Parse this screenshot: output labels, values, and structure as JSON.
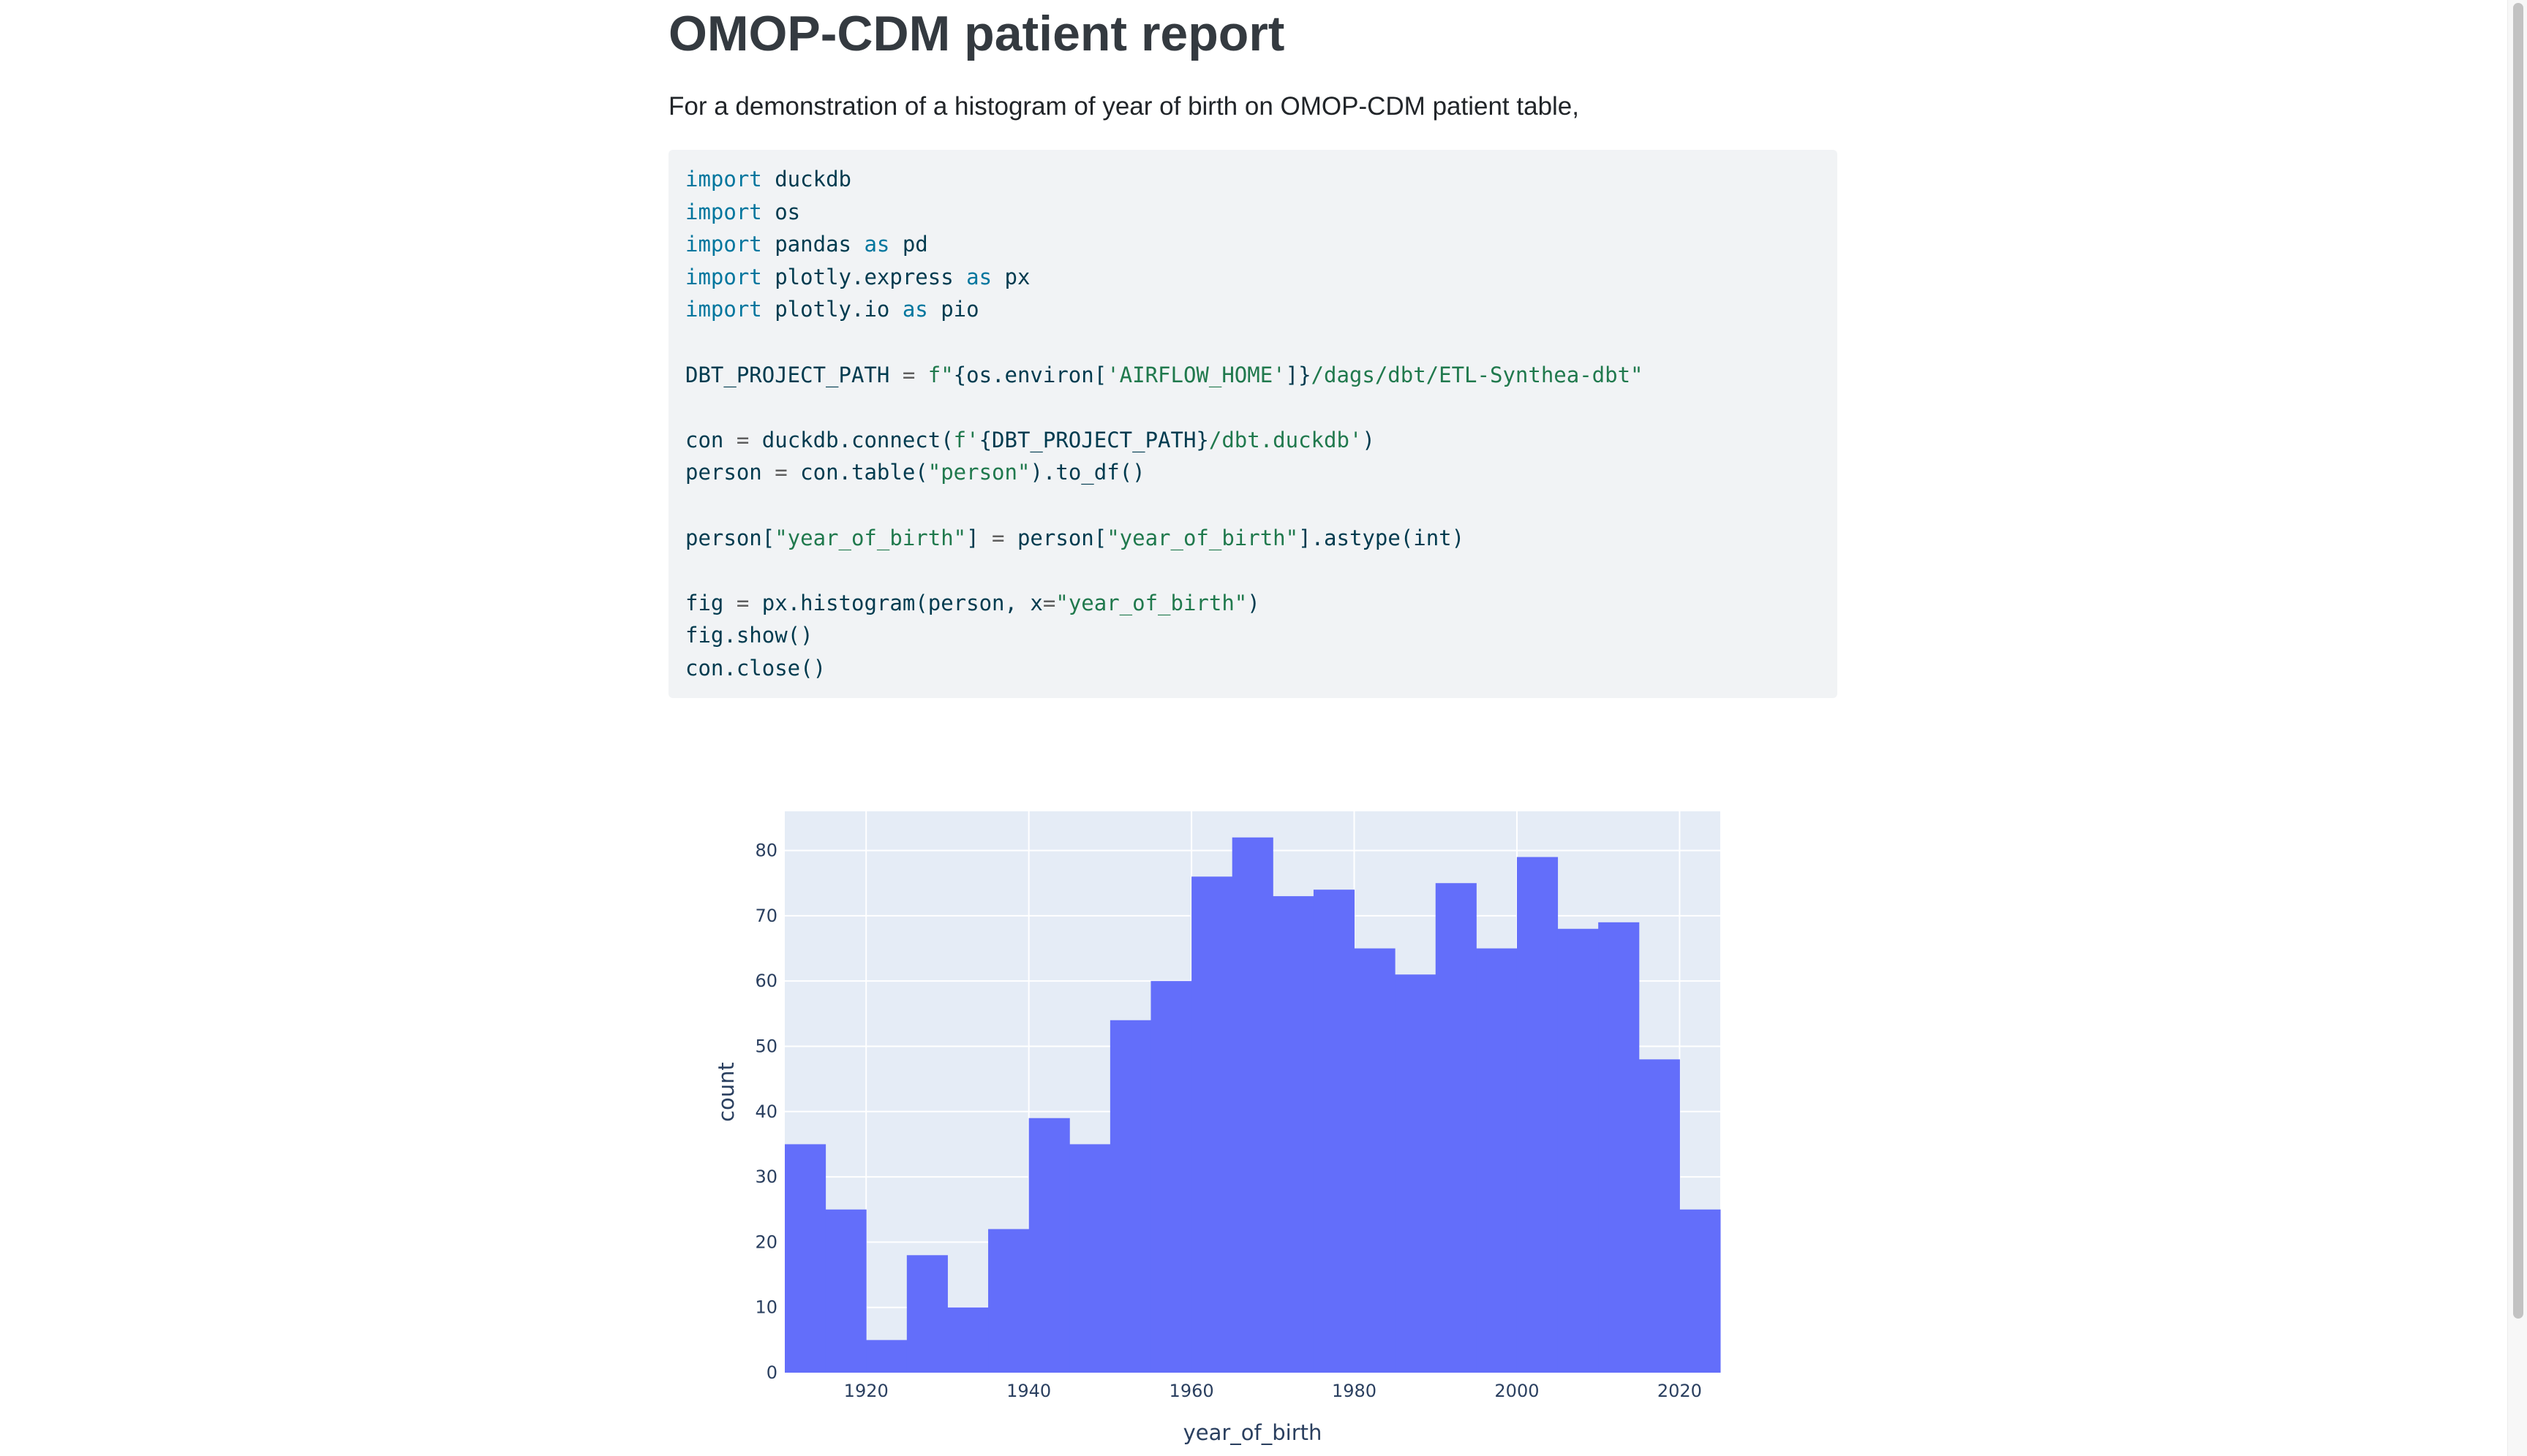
{
  "page": {
    "title": "OMOP-CDM patient report",
    "intro": "For a demonstration of a histogram of year of birth on OMOP-CDM patient table,"
  },
  "code": {
    "lines": [
      [
        {
          "t": "import",
          "c": "kw"
        },
        {
          "t": " duckdb"
        }
      ],
      [
        {
          "t": "import",
          "c": "kw"
        },
        {
          "t": " os"
        }
      ],
      [
        {
          "t": "import",
          "c": "kw"
        },
        {
          "t": " pandas "
        },
        {
          "t": "as",
          "c": "kw"
        },
        {
          "t": " pd"
        }
      ],
      [
        {
          "t": "import",
          "c": "kw"
        },
        {
          "t": " plotly.express "
        },
        {
          "t": "as",
          "c": "kw"
        },
        {
          "t": " px"
        }
      ],
      [
        {
          "t": "import",
          "c": "kw"
        },
        {
          "t": " plotly.io "
        },
        {
          "t": "as",
          "c": "kw"
        },
        {
          "t": " pio"
        }
      ],
      [],
      [
        {
          "t": "DBT_PROJECT_PATH "
        },
        {
          "t": "=",
          "c": "op"
        },
        {
          "t": " "
        },
        {
          "t": "f\"",
          "c": "str"
        },
        {
          "t": "{os.environ["
        },
        {
          "t": "'AIRFLOW_HOME'",
          "c": "str"
        },
        {
          "t": "]}"
        },
        {
          "t": "/dags/dbt/ETL-Synthea-dbt\"",
          "c": "str"
        }
      ],
      [],
      [
        {
          "t": "con "
        },
        {
          "t": "=",
          "c": "op"
        },
        {
          "t": " duckdb.connect("
        },
        {
          "t": "f'",
          "c": "str"
        },
        {
          "t": "{DBT_PROJECT_PATH}"
        },
        {
          "t": "/dbt.duckdb'",
          "c": "str"
        },
        {
          "t": ")"
        }
      ],
      [
        {
          "t": "person "
        },
        {
          "t": "=",
          "c": "op"
        },
        {
          "t": " con.table("
        },
        {
          "t": "\"person\"",
          "c": "str"
        },
        {
          "t": ").to_df()"
        }
      ],
      [],
      [
        {
          "t": "person["
        },
        {
          "t": "\"year_of_birth\"",
          "c": "str"
        },
        {
          "t": "] "
        },
        {
          "t": "=",
          "c": "op"
        },
        {
          "t": " person["
        },
        {
          "t": "\"year_of_birth\"",
          "c": "str"
        },
        {
          "t": "].astype("
        },
        {
          "t": "int"
        },
        {
          "t": ")"
        }
      ],
      [],
      [
        {
          "t": "fig "
        },
        {
          "t": "=",
          "c": "op"
        },
        {
          "t": " px.histogram(person, x"
        },
        {
          "t": "=",
          "c": "op"
        },
        {
          "t": "\"year_of_birth\"",
          "c": "str"
        },
        {
          "t": ")"
        }
      ],
      [
        {
          "t": "fig.show()"
        }
      ],
      [
        {
          "t": "con.close()"
        }
      ]
    ]
  },
  "colors": {
    "bar": "#636efa",
    "plot_bg": "#e5ecf6",
    "grid": "#ffffff",
    "text": "#2a3f5f"
  },
  "chart_data": {
    "type": "bar",
    "xlabel": "year_of_birth",
    "ylabel": "count",
    "xlim": [
      1910,
      2025
    ],
    "ylim": [
      0,
      86
    ],
    "xticks": [
      1920,
      1940,
      1960,
      1980,
      2000,
      2020
    ],
    "yticks": [
      0,
      10,
      20,
      30,
      40,
      50,
      60,
      70,
      80
    ],
    "bin_width": 5,
    "bin_starts": [
      1910,
      1915,
      1920,
      1925,
      1930,
      1935,
      1940,
      1945,
      1950,
      1955,
      1960,
      1965,
      1970,
      1975,
      1980,
      1985,
      1990,
      1995,
      2000,
      2005,
      2010,
      2015,
      2020
    ],
    "values": [
      35,
      25,
      5,
      18,
      10,
      22,
      39,
      35,
      54,
      60,
      76,
      82,
      73,
      74,
      65,
      61,
      75,
      65,
      79,
      68,
      69,
      48,
      25
    ],
    "grid": true
  }
}
